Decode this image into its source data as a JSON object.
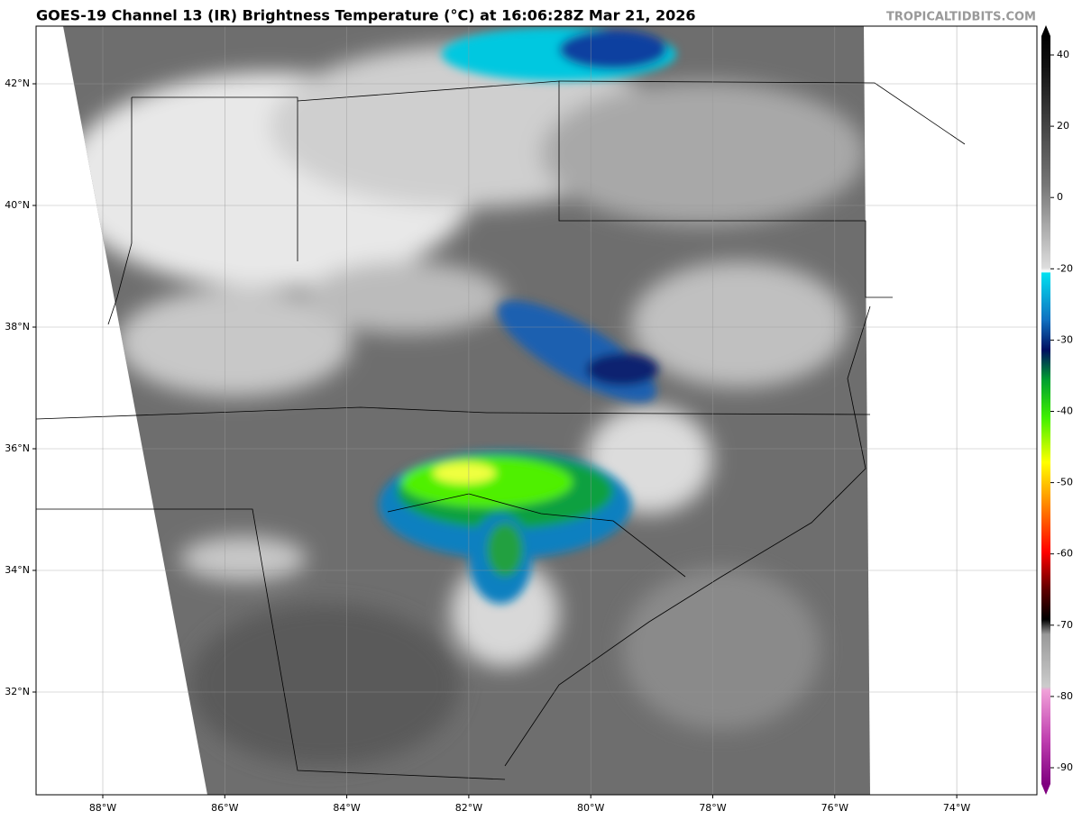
{
  "header": {
    "title": "GOES-19 Channel 13 (IR) Brightness Temperature (°C) at 16:06:28Z Mar 21, 2026",
    "credit": "TROPICALTIDBITS.COM"
  },
  "map": {
    "lat_labels": [
      "42°N",
      "40°N",
      "38°N",
      "36°N",
      "34°N",
      "32°N"
    ],
    "lon_labels": [
      "88°W",
      "86°W",
      "84°W",
      "82°W",
      "80°W",
      "78°W",
      "76°W",
      "74°W"
    ]
  },
  "colorbar": {
    "ticks": [
      "40",
      "20",
      "0",
      "-20",
      "-30",
      "-40",
      "-50",
      "-60",
      "-70",
      "-80",
      "-90"
    ]
  }
}
